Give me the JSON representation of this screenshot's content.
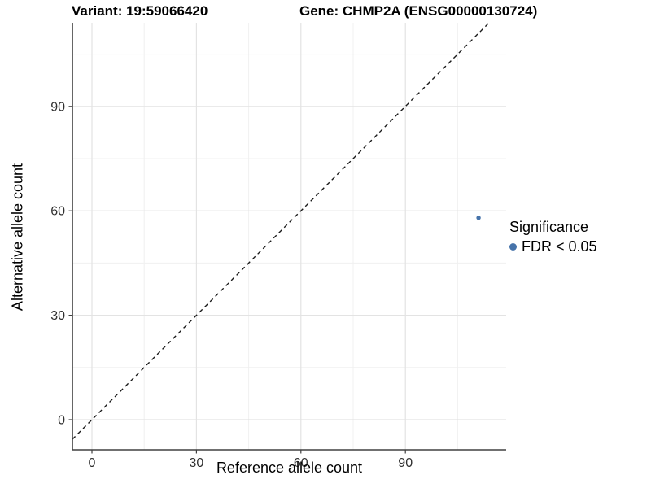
{
  "titles": {
    "variant": "Variant: 19:59066420",
    "gene": "Gene: CHMP2A (ENSG00000130724)"
  },
  "axes": {
    "x_label": "Reference allele count",
    "y_label": "Alternative allele count",
    "x_ticks": [
      0,
      30,
      60,
      90
    ],
    "y_ticks": [
      0,
      30,
      60,
      90
    ],
    "x_minor": [
      15,
      45,
      75,
      105
    ],
    "y_minor": [
      15,
      45,
      75,
      105
    ]
  },
  "legend": {
    "title": "Significance",
    "items": [
      {
        "label": "FDR < 0.05",
        "color": "#4673aa"
      }
    ]
  },
  "colors": {
    "point": "#4673aa",
    "major_grid": "#e3e3e3",
    "minor_grid": "#f0f0f0",
    "axis_line": "#404040",
    "tick_label": "#303030",
    "dashed_line": "#1a1a1a"
  },
  "chart_data": {
    "type": "scatter",
    "title": "Variant: 19:59066420   Gene: CHMP2A (ENSG00000130724)",
    "xlabel": "Reference allele count",
    "ylabel": "Alternative allele count",
    "xlim": [
      -6,
      119
    ],
    "ylim": [
      -9,
      114
    ],
    "grid": "on",
    "legend_position": "right",
    "series": [
      {
        "name": "FDR < 0.05",
        "color": "#4673aa",
        "points": [
          {
            "x": 111,
            "y": 58
          }
        ]
      }
    ],
    "reference_line": {
      "kind": "identity",
      "slope": 1,
      "intercept": 0,
      "style": "dashed",
      "color": "#1a1a1a"
    }
  }
}
